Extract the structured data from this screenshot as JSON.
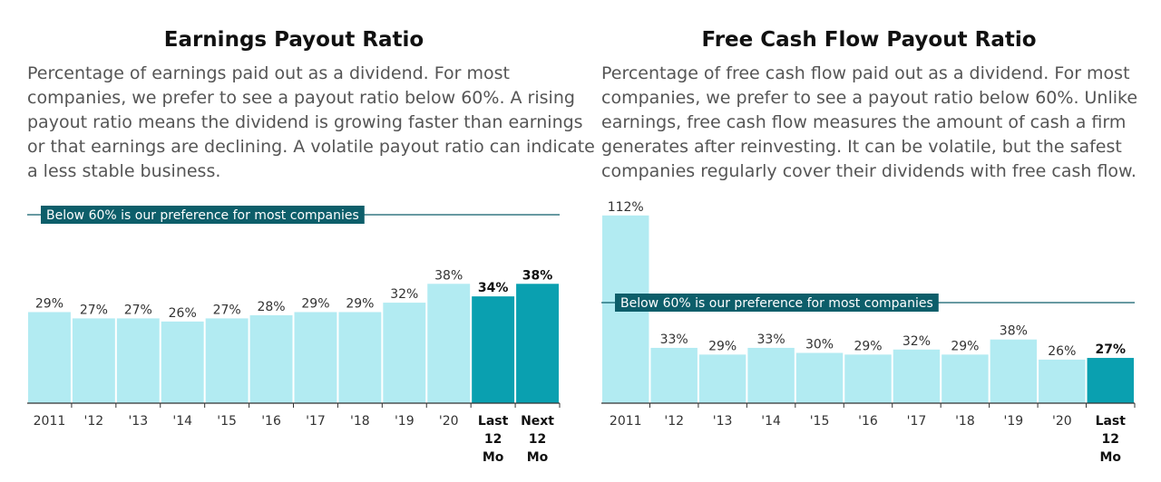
{
  "chart_data": [
    {
      "type": "bar",
      "title": "Earnings Payout Ratio",
      "description": "Percentage of earnings paid out as a dividend. For most companies, we prefer to see a payout ratio below 60%. A rising payout ratio means the dividend is growing faster than earnings or that earnings are declining. A volatile payout ratio can indicate a less stable business.",
      "description_lines": [
        "Percentage of earnings paid out as a dividend. For most",
        "companies, we prefer to see a payout ratio below 60%. A rising",
        "payout ratio means the dividend is growing faster than earnings",
        "or that earnings are declining. A volatile payout ratio can indicate",
        "a less stable business."
      ],
      "categories": [
        "2011",
        "'12",
        "'13",
        "'14",
        "'15",
        "'16",
        "'17",
        "'18",
        "'19",
        "'20",
        "Last 12 Mo",
        "Next 12 Mo"
      ],
      "category_lines": [
        [
          "2011"
        ],
        [
          "'12"
        ],
        [
          "'13"
        ],
        [
          "'14"
        ],
        [
          "'15"
        ],
        [
          "'16"
        ],
        [
          "'17"
        ],
        [
          "'18"
        ],
        [
          "'19"
        ],
        [
          "'20"
        ],
        [
          "Last",
          "12",
          "Mo"
        ],
        [
          "Next",
          "12",
          "Mo"
        ]
      ],
      "values": [
        29,
        27,
        27,
        26,
        27,
        28,
        29,
        29,
        32,
        38,
        34,
        38
      ],
      "value_labels": [
        "29%",
        "27%",
        "27%",
        "26%",
        "27%",
        "28%",
        "29%",
        "29%",
        "32%",
        "38%",
        "34%",
        "38%"
      ],
      "highlighted": [
        false,
        false,
        false,
        false,
        false,
        false,
        false,
        false,
        false,
        false,
        true,
        true
      ],
      "reference_line": {
        "value": 60,
        "label": "Below 60% is our preference for most companies"
      },
      "ylim": [
        0,
        60
      ],
      "colors": {
        "bar": "#b2ebf2",
        "highlight": "#0aa0b0",
        "reference": "#0d5e6a"
      },
      "grid": false,
      "xlabel": "",
      "ylabel": ""
    },
    {
      "type": "bar",
      "title": "Free Cash Flow Payout Ratio",
      "description": "Percentage of free cash flow paid out as a dividend. For most companies, we prefer to see a payout ratio below 60%. Unlike earnings, free cash flow measures the amount of cash a firm generates after reinvesting. It can be volatile, but the safest companies regularly cover their dividends with free cash flow.",
      "description_lines": [
        "Percentage of free cash flow paid out as a dividend. For most",
        "companies, we prefer to see a payout ratio below 60%. Unlike",
        "earnings, free cash flow measures the amount of cash a firm",
        "generates after reinvesting. It can be volatile, but the safest",
        "companies regularly cover their dividends with free cash flow."
      ],
      "categories": [
        "2011",
        "'12",
        "'13",
        "'14",
        "'15",
        "'16",
        "'17",
        "'18",
        "'19",
        "'20",
        "Last 12 Mo"
      ],
      "category_lines": [
        [
          "2011"
        ],
        [
          "'12"
        ],
        [
          "'13"
        ],
        [
          "'14"
        ],
        [
          "'15"
        ],
        [
          "'16"
        ],
        [
          "'17"
        ],
        [
          "'18"
        ],
        [
          "'19"
        ],
        [
          "'20"
        ],
        [
          "Last",
          "12",
          "Mo"
        ]
      ],
      "values": [
        112,
        33,
        29,
        33,
        30,
        29,
        32,
        29,
        38,
        26,
        27
      ],
      "value_labels": [
        "112%",
        "33%",
        "29%",
        "33%",
        "30%",
        "29%",
        "32%",
        "29%",
        "38%",
        "26%",
        "27%"
      ],
      "highlighted": [
        false,
        false,
        false,
        false,
        false,
        false,
        false,
        false,
        false,
        false,
        true
      ],
      "reference_line": {
        "value": 60,
        "label": "Below 60% is our preference for most companies"
      },
      "ylim": [
        0,
        112
      ],
      "colors": {
        "bar": "#b2ebf2",
        "highlight": "#0aa0b0",
        "reference": "#0d5e6a"
      },
      "grid": false,
      "xlabel": "",
      "ylabel": ""
    }
  ]
}
